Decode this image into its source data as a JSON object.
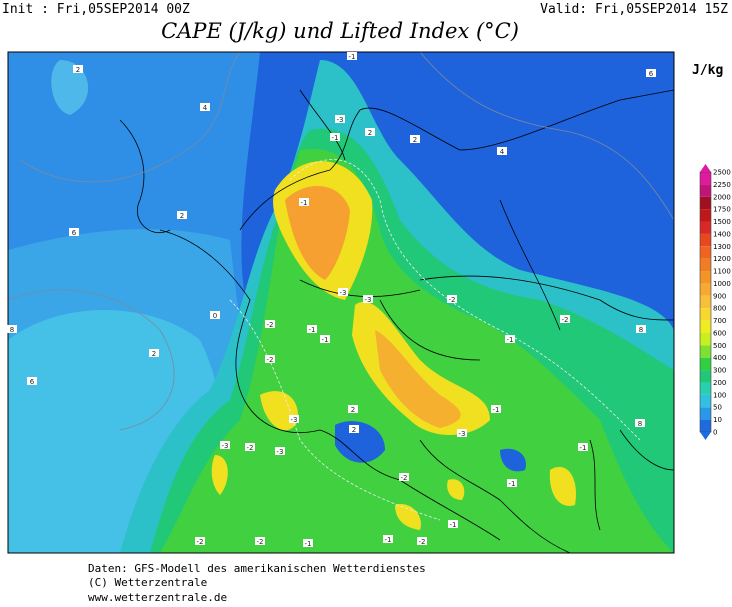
{
  "header": {
    "init": "Init : Fri,05SEP2014 00Z",
    "valid": "Valid: Fri,05SEP2014 15Z",
    "title": "CAPE (J/kg) und Lifted Index (°C)"
  },
  "colorbar": {
    "unit": "J/kg",
    "labels": [
      "2500",
      "2250",
      "2000",
      "1750",
      "1500",
      "1400",
      "1300",
      "1200",
      "1100",
      "1000",
      "900",
      "800",
      "700",
      "600",
      "500",
      "400",
      "300",
      "200",
      "100",
      "50",
      "10",
      "0"
    ]
  },
  "map": {
    "contour_labels": [
      "2",
      "4",
      "6",
      "2",
      "8",
      "2",
      "6",
      "-1",
      "-3",
      "-1",
      "2",
      "2",
      "-1",
      "-3",
      "-3",
      "-2",
      "-1",
      "-2",
      "-1",
      "-1",
      "-2",
      "0",
      "2",
      "-1",
      "-3",
      "-3",
      "-2",
      "-3",
      "2",
      "-3",
      "-1",
      "-2",
      "-1",
      "-1",
      "-2",
      "-1",
      "-1",
      "-2",
      "-2",
      "-1",
      "-2",
      "6",
      "8",
      "4",
      "8"
    ]
  },
  "footer": [
    "Daten: GFS-Modell des amerikanischen Wetterdienstes",
    "(C) Wetterzentrale",
    "www.wetterzentrale.de"
  ]
}
